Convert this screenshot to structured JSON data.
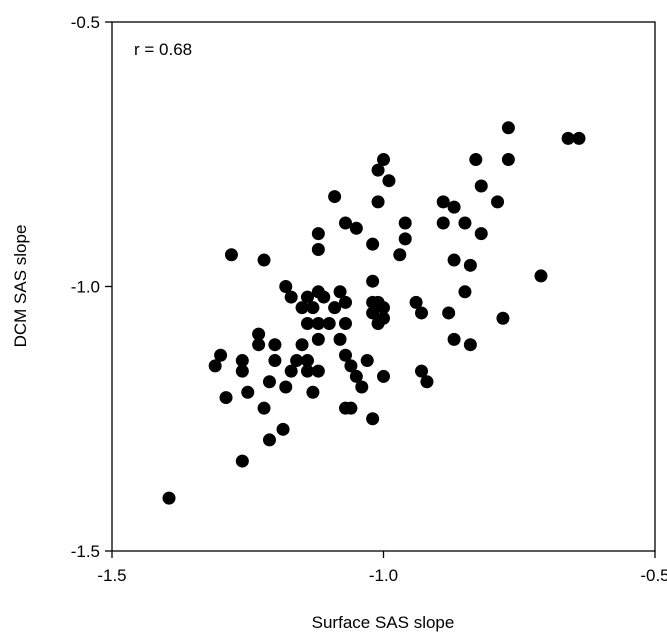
{
  "chart_data": {
    "type": "scatter",
    "xlabel": "Surface SAS slope",
    "ylabel": "DCM SAS slope",
    "annotation": "r = 0.68",
    "xlim": [
      -1.5,
      -0.5
    ],
    "ylim": [
      -1.5,
      -0.5
    ],
    "xticks": [
      -1.5,
      -1.0,
      -0.5
    ],
    "xtick_labels": [
      "-1.5",
      "-1.0",
      "-0.5"
    ],
    "yticks": [
      -1.5,
      -1.0,
      -0.5
    ],
    "ytick_labels": [
      "-1.5",
      "-1.0",
      "-0.5"
    ],
    "grid": false,
    "marker_color": "#000000",
    "points": [
      [
        -1.395,
        -1.4
      ],
      [
        -1.26,
        -1.33
      ],
      [
        -1.21,
        -1.29
      ],
      [
        -1.185,
        -1.27
      ],
      [
        -1.25,
        -1.2
      ],
      [
        -1.22,
        -1.23
      ],
      [
        -1.29,
        -1.21
      ],
      [
        -1.31,
        -1.15
      ],
      [
        -1.3,
        -1.13
      ],
      [
        -1.26,
        -1.14
      ],
      [
        -1.26,
        -1.16
      ],
      [
        -1.23,
        -1.11
      ],
      [
        -1.23,
        -1.09
      ],
      [
        -1.21,
        -1.18
      ],
      [
        -1.2,
        -1.14
      ],
      [
        -1.2,
        -1.11
      ],
      [
        -1.18,
        -1.19
      ],
      [
        -1.17,
        -1.16
      ],
      [
        -1.16,
        -1.14
      ],
      [
        -1.15,
        -1.11
      ],
      [
        -1.15,
        -1.04
      ],
      [
        -1.14,
        -1.07
      ],
      [
        -1.14,
        -1.02
      ],
      [
        -1.13,
        -1.04
      ],
      [
        -1.12,
        -1.01
      ],
      [
        -1.11,
        -1.02
      ],
      [
        -1.14,
        -1.16
      ],
      [
        -1.14,
        -1.14
      ],
      [
        -1.12,
        -1.1
      ],
      [
        -1.12,
        -1.07
      ],
      [
        -1.18,
        -1.0
      ],
      [
        -1.17,
        -1.02
      ],
      [
        -1.13,
        -1.2
      ],
      [
        -1.12,
        -1.16
      ],
      [
        -1.1,
        -1.07
      ],
      [
        -1.09,
        -1.04
      ],
      [
        -1.08,
        -1.01
      ],
      [
        -1.07,
        -1.03
      ],
      [
        -1.07,
        -1.07
      ],
      [
        -1.08,
        -1.1
      ],
      [
        -1.07,
        -1.13
      ],
      [
        -1.06,
        -1.15
      ],
      [
        -1.07,
        -1.23
      ],
      [
        -1.06,
        -1.23
      ],
      [
        -1.05,
        -1.17
      ],
      [
        -1.04,
        -1.19
      ],
      [
        -1.03,
        -1.14
      ],
      [
        -1.02,
        -1.25
      ],
      [
        -1.0,
        -1.17
      ],
      [
        -1.01,
        -1.07
      ],
      [
        -1.0,
        -1.06
      ],
      [
        -1.0,
        -1.04
      ],
      [
        -1.02,
        -1.05
      ],
      [
        -1.02,
        -1.03
      ],
      [
        -1.01,
        -1.03
      ],
      [
        -1.02,
        -0.99
      ],
      [
        -1.22,
        -0.95
      ],
      [
        -1.28,
        -0.94
      ],
      [
        -1.12,
        -0.9
      ],
      [
        -1.12,
        -0.93
      ],
      [
        -1.09,
        -0.83
      ],
      [
        -1.07,
        -0.88
      ],
      [
        -1.05,
        -0.89
      ],
      [
        -1.02,
        -0.92
      ],
      [
        -1.01,
        -0.78
      ],
      [
        -1.0,
        -0.76
      ],
      [
        -0.99,
        -0.8
      ],
      [
        -1.01,
        -0.84
      ],
      [
        -0.97,
        -0.94
      ],
      [
        -0.96,
        -0.91
      ],
      [
        -0.96,
        -0.88
      ],
      [
        -0.94,
        -1.03
      ],
      [
        -0.93,
        -1.05
      ],
      [
        -0.92,
        -1.18
      ],
      [
        -0.93,
        -1.16
      ],
      [
        -0.89,
        -0.84
      ],
      [
        -0.89,
        -0.88
      ],
      [
        -0.88,
        -1.05
      ],
      [
        -0.87,
        -0.85
      ],
      [
        -0.87,
        -0.95
      ],
      [
        -0.85,
        -0.88
      ],
      [
        -0.85,
        -1.01
      ],
      [
        -0.84,
        -0.96
      ],
      [
        -0.84,
        -1.11
      ],
      [
        -0.87,
        -1.1
      ],
      [
        -0.83,
        -0.76
      ],
      [
        -0.82,
        -0.81
      ],
      [
        -0.82,
        -0.9
      ],
      [
        -0.79,
        -0.84
      ],
      [
        -0.78,
        -1.06
      ],
      [
        -0.77,
        -0.76
      ],
      [
        -0.77,
        -0.7
      ],
      [
        -0.71,
        -0.98
      ],
      [
        -0.66,
        -0.72
      ],
      [
        -0.64,
        -0.72
      ]
    ]
  }
}
